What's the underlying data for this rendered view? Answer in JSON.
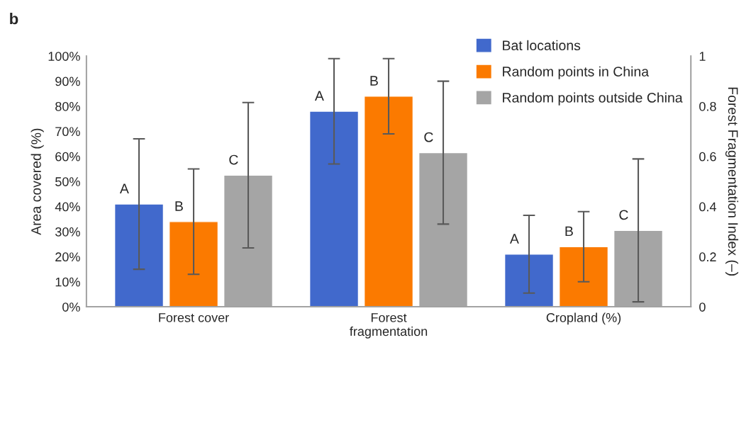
{
  "chart_data": {
    "type": "bar",
    "title": "b",
    "categories": [
      "Forest cover",
      "Forest\nfragmentation",
      "Cropland (%)"
    ],
    "series": [
      {
        "name": "Bat locations",
        "color": "#4169cc",
        "values": [
          41,
          78,
          21
        ],
        "errors": [
          26,
          21,
          15.5
        ]
      },
      {
        "name": "Random points in China",
        "color": "#fb7a00",
        "values": [
          34,
          84,
          24
        ],
        "errors": [
          21,
          15,
          14
        ]
      },
      {
        "name": "Random points outside China",
        "color": "#a5a5a5",
        "values": [
          52.5,
          61.5,
          30.5
        ],
        "errors": [
          29,
          28.5,
          28.5
        ]
      }
    ],
    "ylabel": "Area covered (%)",
    "y2label": "Forest Fragmentation Index (–)",
    "ylim": [
      0,
      100
    ],
    "yticks": [
      {
        "value": 0,
        "label": "0%"
      },
      {
        "value": 10,
        "label": "10%"
      },
      {
        "value": 20,
        "label": "20%"
      },
      {
        "value": 30,
        "label": "30%"
      },
      {
        "value": 40,
        "label": "40%"
      },
      {
        "value": 50,
        "label": "50%"
      },
      {
        "value": 60,
        "label": "60%"
      },
      {
        "value": 70,
        "label": "70%"
      },
      {
        "value": 80,
        "label": "80%"
      },
      {
        "value": 90,
        "label": "90%"
      },
      {
        "value": 100,
        "label": "100%"
      }
    ],
    "y2lim": [
      0,
      1
    ],
    "y2ticks": [
      0,
      0.2,
      0.4,
      0.6,
      0.8,
      1
    ],
    "annotations": [
      "A",
      "B",
      "C",
      "A",
      "B",
      "C",
      "A",
      "B",
      "C"
    ],
    "legend": "top right",
    "grid": false
  }
}
